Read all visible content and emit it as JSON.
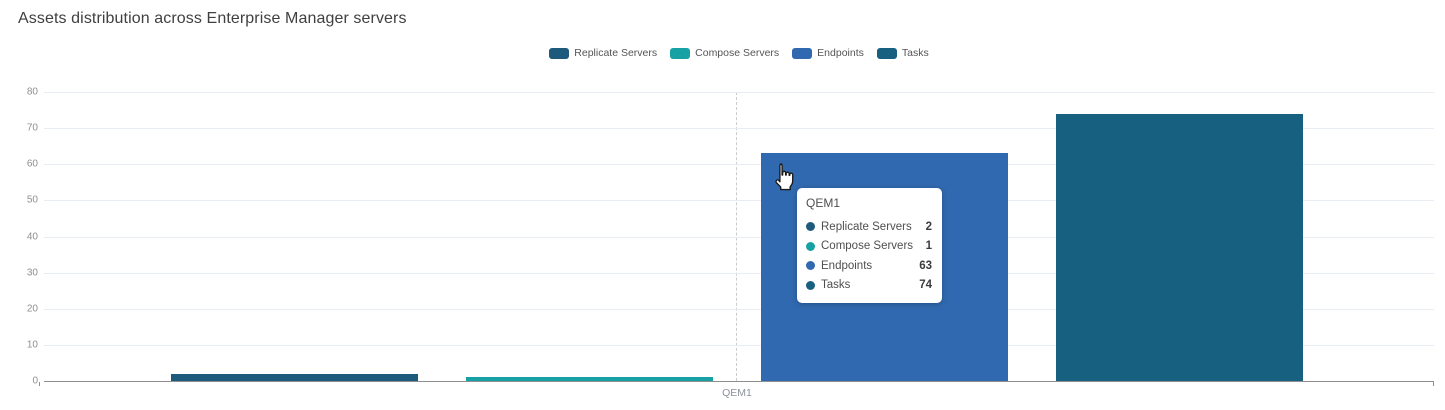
{
  "title": "Assets distribution across Enterprise Manager servers",
  "chart_data": {
    "type": "bar",
    "title": "Assets distribution across Enterprise Manager servers",
    "categories": [
      "QEM1"
    ],
    "series": [
      {
        "name": "Replicate Servers",
        "color": "#1d5a7c",
        "values": [
          2
        ]
      },
      {
        "name": "Compose Servers",
        "color": "#18a1a4",
        "values": [
          1
        ]
      },
      {
        "name": "Endpoints",
        "color": "#3169b0",
        "values": [
          63
        ]
      },
      {
        "name": "Tasks",
        "color": "#186080",
        "values": [
          74
        ]
      }
    ],
    "ylim": [
      0,
      80
    ],
    "yticks": [
      0,
      10,
      20,
      30,
      40,
      50,
      60,
      70,
      80
    ],
    "xlabel": "",
    "ylabel": "",
    "grid": true,
    "legend_position": "top-center"
  },
  "tooltip": {
    "title": "QEM1",
    "rows": [
      {
        "label": "Replicate Servers",
        "value": "2",
        "color": "#1d5a7c"
      },
      {
        "label": "Compose Servers",
        "value": "1",
        "color": "#18a1a4"
      },
      {
        "label": "Endpoints",
        "value": "63",
        "color": "#3169b0"
      },
      {
        "label": "Tasks",
        "value": "74",
        "color": "#186080"
      }
    ]
  }
}
